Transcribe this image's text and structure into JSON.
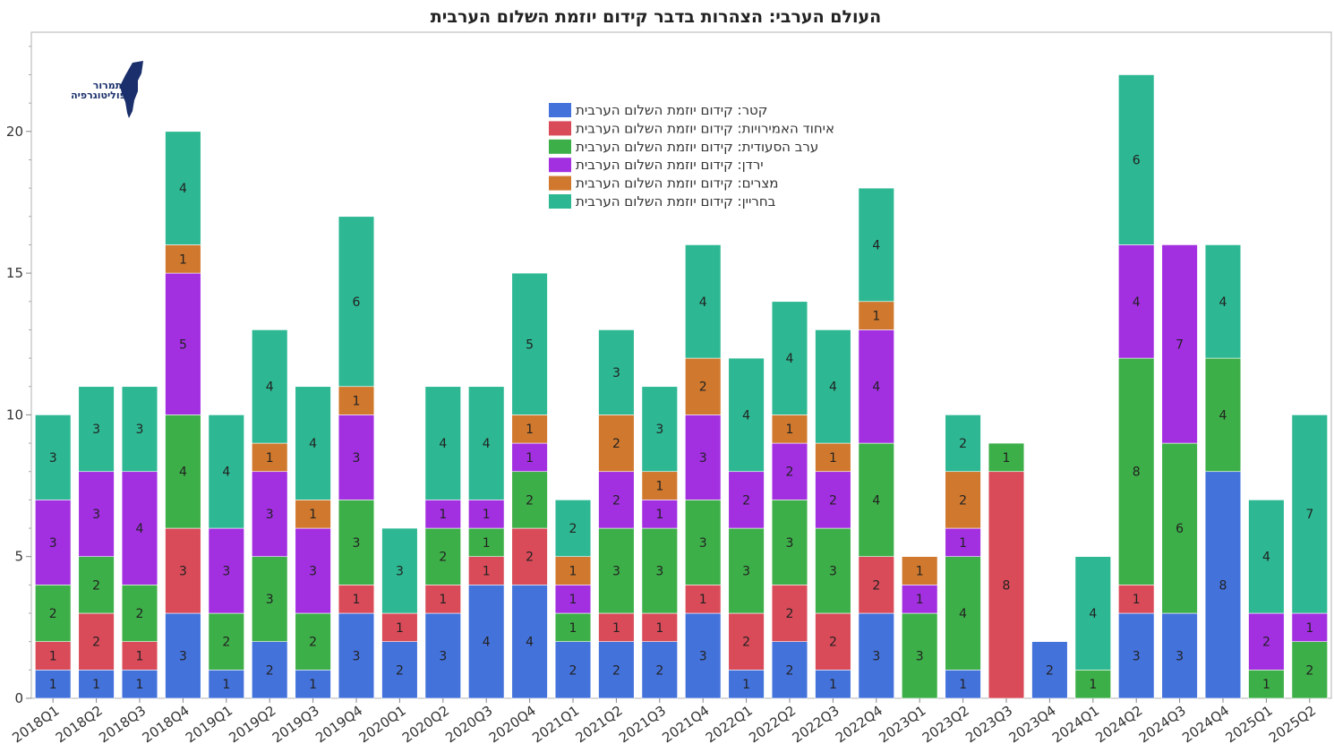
{
  "chart_data": {
    "type": "bar",
    "stacked": true,
    "title": "העולם הערבי: הצהרות בדבר קידום יוזמת השלום הערבית",
    "xlabel": "",
    "ylabel": "",
    "ylim": [
      0,
      23.5
    ],
    "yticks": [
      0,
      5,
      10,
      15,
      20
    ],
    "legend_position": "top-center",
    "categories": [
      "2018Q1",
      "2018Q2",
      "2018Q3",
      "2018Q4",
      "2019Q1",
      "2019Q2",
      "2019Q3",
      "2019Q4",
      "2020Q1",
      "2020Q2",
      "2020Q3",
      "2020Q4",
      "2021Q1",
      "2021Q2",
      "2021Q3",
      "2021Q4",
      "2022Q1",
      "2022Q2",
      "2022Q3",
      "2022Q4",
      "2023Q1",
      "2023Q2",
      "2023Q3",
      "2023Q4",
      "2024Q1",
      "2024Q2",
      "2024Q3",
      "2024Q4",
      "2025Q1",
      "2025Q2"
    ],
    "series": [
      {
        "name": "קטר: קידום יוזמת השלום הערבית",
        "color": "#4472db",
        "values": [
          1,
          1,
          1,
          3,
          1,
          2,
          1,
          3,
          2,
          3,
          4,
          4,
          2,
          2,
          2,
          3,
          1,
          2,
          1,
          3,
          0,
          1,
          0,
          2,
          0,
          3,
          3,
          8,
          0,
          0
        ]
      },
      {
        "name": "איחוד האמירויות: קידום יוזמת השלום הערבית",
        "color": "#d94b59",
        "values": [
          1,
          2,
          1,
          3,
          0,
          0,
          0,
          1,
          1,
          1,
          1,
          2,
          0,
          1,
          1,
          1,
          2,
          2,
          2,
          2,
          0,
          0,
          8,
          0,
          0,
          1,
          0,
          0,
          0,
          0
        ]
      },
      {
        "name": "ערב הסעודית: קידום יוזמת השלום הערבית",
        "color": "#3daf48",
        "values": [
          2,
          2,
          2,
          4,
          2,
          3,
          2,
          3,
          0,
          2,
          1,
          2,
          1,
          3,
          3,
          3,
          3,
          3,
          3,
          4,
          3,
          4,
          1,
          0,
          1,
          8,
          6,
          4,
          1,
          2
        ]
      },
      {
        "name": "ירדן: קידום יוזמת השלום הערבית",
        "color": "#a22fe0",
        "values": [
          3,
          3,
          4,
          5,
          3,
          3,
          3,
          3,
          0,
          1,
          1,
          1,
          1,
          2,
          1,
          3,
          2,
          2,
          2,
          4,
          1,
          1,
          0,
          0,
          0,
          4,
          7,
          0,
          2,
          1
        ]
      },
      {
        "name": "מצרים: קידום יוזמת השלום הערבית",
        "color": "#d0792e",
        "values": [
          0,
          0,
          0,
          1,
          0,
          1,
          1,
          1,
          0,
          0,
          0,
          1,
          1,
          2,
          1,
          2,
          0,
          1,
          1,
          1,
          1,
          2,
          0,
          0,
          0,
          0,
          0,
          0,
          0,
          0
        ]
      },
      {
        "name": "בחריין: קידום יוזמת השלום הערבית",
        "color": "#2db893",
        "values": [
          3,
          3,
          3,
          4,
          4,
          4,
          4,
          6,
          3,
          4,
          4,
          5,
          2,
          3,
          3,
          4,
          4,
          4,
          4,
          4,
          0,
          2,
          0,
          0,
          4,
          6,
          0,
          4,
          4,
          7
        ]
      }
    ]
  },
  "logo": {
    "line1": "תמרור",
    "line2": "פוליטוגרפיה",
    "icon": "israel-map-icon"
  }
}
